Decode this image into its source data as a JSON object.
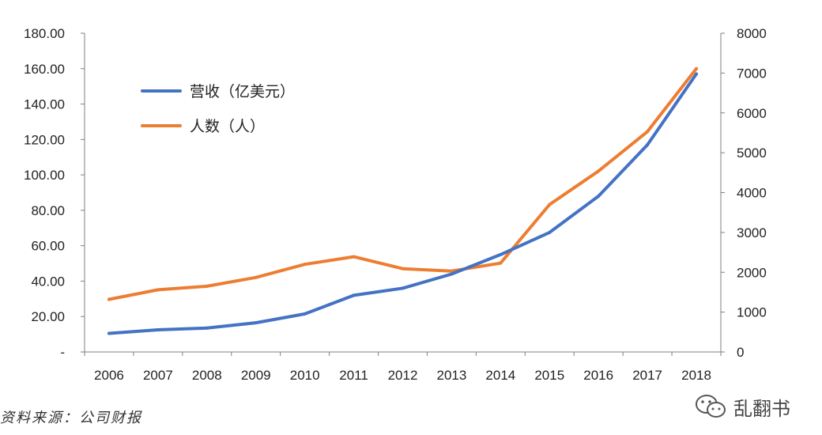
{
  "chart_data": {
    "type": "line",
    "title": "",
    "categories": [
      "2006",
      "2007",
      "2008",
      "2009",
      "2010",
      "2011",
      "2012",
      "2013",
      "2014",
      "2015",
      "2016",
      "2017",
      "2018"
    ],
    "series": [
      {
        "name": "营收（亿美元）",
        "axis": "left",
        "color": "#4472C4",
        "values": [
          10.5,
          12.5,
          13.5,
          16.5,
          21.5,
          32.0,
          36.0,
          44.0,
          55.0,
          67.5,
          88.0,
          117.0,
          157.0
        ]
      },
      {
        "name": "人数（人）",
        "axis": "right",
        "color": "#ED7D31",
        "values": [
          1320,
          1560,
          1650,
          1870,
          2200,
          2390,
          2090,
          2030,
          2230,
          3700,
          4540,
          5530,
          7110
        ]
      }
    ],
    "y_left": {
      "range": [
        0,
        180
      ],
      "ticks": [
        0,
        20,
        40,
        60,
        80,
        100,
        120,
        140,
        160,
        180
      ],
      "tick_labels": [
        "-",
        "20.00",
        "40.00",
        "60.00",
        "80.00",
        "100.00",
        "120.00",
        "140.00",
        "160.00",
        "180.00"
      ]
    },
    "y_right": {
      "range": [
        0,
        8000
      ],
      "ticks": [
        0,
        1000,
        2000,
        3000,
        4000,
        5000,
        6000,
        7000,
        8000
      ],
      "tick_labels": [
        "0",
        "1000",
        "2000",
        "3000",
        "4000",
        "5000",
        "6000",
        "7000",
        "8000"
      ]
    },
    "legend_position": "top-left",
    "grid": false
  },
  "source_note": "资料来源：公司财报",
  "watermark": "乱翻书"
}
